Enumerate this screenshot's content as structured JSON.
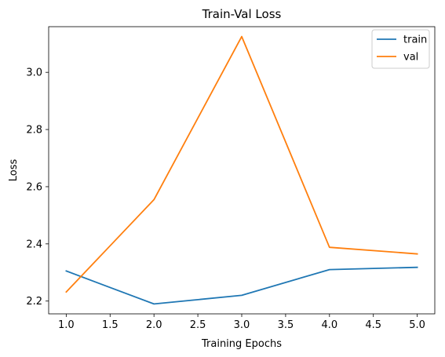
{
  "chart_data": {
    "type": "line",
    "title": "Train-Val Loss",
    "xlabel": "Training Epochs",
    "ylabel": "Loss",
    "x": [
      1.0,
      2.0,
      3.0,
      4.0,
      5.0
    ],
    "series": [
      {
        "name": "train",
        "color": "#1f77b4",
        "values": [
          2.305,
          2.19,
          2.22,
          2.31,
          2.318
        ]
      },
      {
        "name": "val",
        "color": "#ff7f0e",
        "values": [
          2.232,
          2.555,
          3.125,
          2.388,
          2.365
        ]
      }
    ],
    "xlim": [
      0.8,
      5.2
    ],
    "ylim": [
      2.1553,
      3.1597
    ],
    "xticks": [
      1.0,
      1.5,
      2.0,
      2.5,
      3.0,
      3.5,
      4.0,
      4.5,
      5.0
    ],
    "xtick_labels": [
      "1.0",
      "1.5",
      "2.0",
      "2.5",
      "3.0",
      "3.5",
      "4.0",
      "4.5",
      "5.0"
    ],
    "yticks": [
      2.2,
      2.4,
      2.6,
      2.8,
      3.0
    ],
    "ytick_labels": [
      "2.2",
      "2.4",
      "2.6",
      "2.8",
      "3.0"
    ],
    "grid": false,
    "legend": "top-right"
  }
}
